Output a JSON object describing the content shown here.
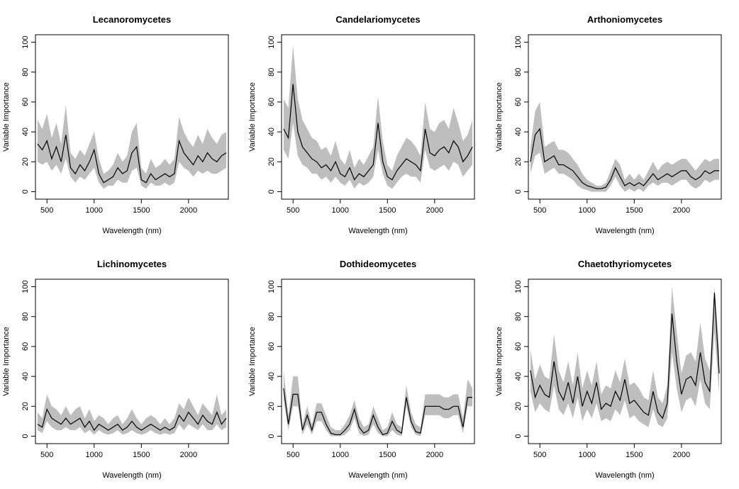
{
  "chart_data": [
    {
      "type": "line",
      "title": "Lecanoromycetes",
      "xlabel": "Wavelength (nm)",
      "ylabel": "Variable Importance",
      "xlim": [
        400,
        2400
      ],
      "ylim": [
        0,
        100
      ],
      "xticks": [
        500,
        1000,
        1500,
        2000
      ],
      "yticks": [
        0,
        20,
        40,
        60,
        80,
        100
      ],
      "grid": false,
      "x": [
        400,
        450,
        500,
        550,
        600,
        650,
        700,
        750,
        800,
        850,
        900,
        950,
        1000,
        1050,
        1100,
        1150,
        1200,
        1250,
        1300,
        1350,
        1400,
        1450,
        1500,
        1550,
        1600,
        1650,
        1700,
        1750,
        1800,
        1850,
        1900,
        1950,
        2000,
        2050,
        2100,
        2150,
        2200,
        2250,
        2300,
        2350,
        2400
      ],
      "series": [
        {
          "values": [
            32,
            28,
            34,
            22,
            30,
            20,
            38,
            16,
            12,
            18,
            14,
            20,
            28,
            12,
            6,
            8,
            10,
            16,
            12,
            14,
            26,
            30,
            8,
            6,
            12,
            8,
            10,
            12,
            10,
            12,
            34,
            26,
            22,
            18,
            24,
            20,
            26,
            22,
            20,
            24,
            26
          ],
          "lower": [
            20,
            18,
            20,
            14,
            18,
            12,
            22,
            10,
            6,
            10,
            8,
            12,
            16,
            6,
            2,
            4,
            4,
            8,
            6,
            6,
            14,
            16,
            4,
            2,
            6,
            4,
            4,
            6,
            4,
            6,
            20,
            16,
            14,
            10,
            14,
            12,
            14,
            12,
            12,
            14,
            16
          ],
          "upper": [
            48,
            42,
            52,
            36,
            46,
            32,
            58,
            26,
            22,
            28,
            24,
            32,
            40,
            22,
            12,
            14,
            18,
            26,
            20,
            24,
            40,
            46,
            16,
            12,
            22,
            16,
            18,
            22,
            18,
            22,
            50,
            40,
            34,
            30,
            38,
            32,
            42,
            36,
            32,
            38,
            40
          ]
        }
      ]
    },
    {
      "type": "line",
      "title": "Candelariomycetes",
      "xlabel": "Wavelength (nm)",
      "ylabel": "Variable Importance",
      "xlim": [
        400,
        2400
      ],
      "ylim": [
        0,
        100
      ],
      "xticks": [
        500,
        1000,
        1500,
        2000
      ],
      "yticks": [
        0,
        20,
        40,
        60,
        80,
        100
      ],
      "grid": false,
      "x": [
        400,
        450,
        500,
        550,
        600,
        650,
        700,
        750,
        800,
        850,
        900,
        950,
        1000,
        1050,
        1100,
        1150,
        1200,
        1250,
        1300,
        1350,
        1400,
        1450,
        1500,
        1550,
        1600,
        1650,
        1700,
        1750,
        1800,
        1850,
        1900,
        1950,
        2000,
        2050,
        2100,
        2150,
        2200,
        2250,
        2300,
        2350,
        2400
      ],
      "series": [
        {
          "values": [
            42,
            36,
            72,
            40,
            30,
            26,
            22,
            20,
            16,
            18,
            14,
            20,
            12,
            10,
            16,
            8,
            12,
            10,
            14,
            18,
            46,
            20,
            10,
            8,
            14,
            18,
            22,
            20,
            18,
            14,
            42,
            26,
            24,
            28,
            30,
            26,
            34,
            30,
            20,
            24,
            30
          ],
          "lower": [
            28,
            22,
            46,
            24,
            18,
            16,
            12,
            12,
            8,
            10,
            6,
            10,
            6,
            4,
            8,
            2,
            6,
            4,
            6,
            10,
            28,
            12,
            4,
            2,
            6,
            10,
            12,
            10,
            10,
            6,
            28,
            16,
            14,
            16,
            18,
            14,
            20,
            18,
            10,
            14,
            18
          ],
          "upper": [
            62,
            56,
            98,
            62,
            48,
            42,
            36,
            34,
            28,
            30,
            24,
            34,
            22,
            18,
            28,
            16,
            22,
            18,
            24,
            30,
            64,
            34,
            18,
            14,
            24,
            30,
            36,
            34,
            30,
            24,
            60,
            42,
            40,
            46,
            48,
            42,
            56,
            46,
            34,
            38,
            48
          ]
        }
      ]
    },
    {
      "type": "line",
      "title": "Arthoniomycetes",
      "xlabel": "Wavelength (nm)",
      "ylabel": "Variable Importance",
      "xlim": [
        400,
        2400
      ],
      "ylim": [
        0,
        100
      ],
      "xticks": [
        500,
        1000,
        1500,
        2000
      ],
      "yticks": [
        0,
        20,
        40,
        60,
        80,
        100
      ],
      "grid": false,
      "x": [
        400,
        450,
        500,
        550,
        600,
        650,
        700,
        750,
        800,
        850,
        900,
        950,
        1000,
        1050,
        1100,
        1150,
        1200,
        1250,
        1300,
        1350,
        1400,
        1450,
        1500,
        1550,
        1600,
        1650,
        1700,
        1750,
        1800,
        1850,
        1900,
        1950,
        2000,
        2050,
        2100,
        2150,
        2200,
        2250,
        2300,
        2350,
        2400
      ],
      "series": [
        {
          "values": [
            20,
            38,
            42,
            20,
            22,
            24,
            18,
            18,
            16,
            14,
            10,
            6,
            4,
            3,
            2,
            2,
            3,
            8,
            16,
            10,
            4,
            6,
            4,
            6,
            4,
            8,
            12,
            8,
            10,
            12,
            10,
            12,
            14,
            14,
            10,
            8,
            10,
            14,
            12,
            14,
            14
          ],
          "lower": [
            12,
            24,
            26,
            12,
            14,
            16,
            12,
            12,
            10,
            8,
            4,
            2,
            1,
            0,
            0,
            0,
            0,
            4,
            10,
            4,
            0,
            2,
            0,
            2,
            0,
            4,
            6,
            4,
            6,
            6,
            4,
            6,
            8,
            8,
            4,
            2,
            4,
            8,
            6,
            8,
            8
          ],
          "upper": [
            30,
            54,
            60,
            30,
            32,
            34,
            28,
            28,
            26,
            22,
            18,
            12,
            8,
            6,
            4,
            4,
            6,
            14,
            22,
            18,
            8,
            12,
            8,
            12,
            8,
            14,
            20,
            14,
            18,
            20,
            18,
            20,
            22,
            22,
            18,
            14,
            18,
            22,
            20,
            22,
            22
          ]
        }
      ]
    },
    {
      "type": "line",
      "title": "Lichinomycetes",
      "xlabel": "Wavelength (nm)",
      "ylabel": "Variable Importance",
      "xlim": [
        400,
        2400
      ],
      "ylim": [
        0,
        100
      ],
      "xticks": [
        500,
        1000,
        1500,
        2000
      ],
      "yticks": [
        0,
        20,
        40,
        60,
        80,
        100
      ],
      "grid": false,
      "x": [
        400,
        450,
        500,
        550,
        600,
        650,
        700,
        750,
        800,
        850,
        900,
        950,
        1000,
        1050,
        1100,
        1150,
        1200,
        1250,
        1300,
        1350,
        1400,
        1450,
        1500,
        1550,
        1600,
        1650,
        1700,
        1750,
        1800,
        1850,
        1900,
        1950,
        2000,
        2050,
        2100,
        2150,
        2200,
        2250,
        2300,
        2350,
        2400
      ],
      "series": [
        {
          "values": [
            8,
            6,
            18,
            12,
            10,
            8,
            12,
            8,
            10,
            12,
            6,
            10,
            4,
            8,
            6,
            4,
            6,
            8,
            4,
            6,
            10,
            6,
            4,
            6,
            8,
            6,
            4,
            6,
            4,
            6,
            14,
            10,
            16,
            12,
            8,
            14,
            10,
            8,
            16,
            8,
            12
          ],
          "lower": [
            4,
            2,
            10,
            6,
            4,
            4,
            6,
            4,
            4,
            6,
            2,
            4,
            1,
            4,
            2,
            1,
            2,
            4,
            1,
            2,
            4,
            2,
            1,
            2,
            4,
            2,
            1,
            2,
            1,
            2,
            8,
            4,
            8,
            6,
            4,
            8,
            4,
            4,
            8,
            4,
            6
          ],
          "upper": [
            16,
            12,
            28,
            20,
            18,
            14,
            20,
            14,
            18,
            20,
            12,
            18,
            10,
            14,
            12,
            8,
            12,
            14,
            8,
            12,
            18,
            12,
            8,
            12,
            14,
            12,
            8,
            12,
            8,
            12,
            22,
            18,
            26,
            20,
            14,
            22,
            18,
            14,
            28,
            14,
            18
          ]
        }
      ]
    },
    {
      "type": "line",
      "title": "Dothideomycetes",
      "xlabel": "Wavelength (nm)",
      "ylabel": "Variable Importance",
      "xlim": [
        400,
        2400
      ],
      "ylim": [
        0,
        100
      ],
      "xticks": [
        500,
        1000,
        1500,
        2000
      ],
      "yticks": [
        0,
        20,
        40,
        60,
        80,
        100
      ],
      "grid": false,
      "x": [
        400,
        450,
        500,
        550,
        600,
        650,
        700,
        750,
        800,
        850,
        900,
        950,
        1000,
        1050,
        1100,
        1150,
        1200,
        1250,
        1300,
        1350,
        1400,
        1450,
        1500,
        1550,
        1600,
        1650,
        1700,
        1750,
        1800,
        1850,
        1900,
        1950,
        2000,
        2050,
        2100,
        2150,
        2200,
        2250,
        2300,
        2350,
        2400
      ],
      "series": [
        {
          "values": [
            32,
            8,
            28,
            28,
            4,
            14,
            4,
            16,
            16,
            8,
            2,
            1,
            1,
            4,
            8,
            18,
            6,
            2,
            4,
            14,
            6,
            1,
            2,
            10,
            4,
            2,
            26,
            10,
            3,
            2,
            20,
            20,
            20,
            20,
            18,
            18,
            20,
            20,
            6,
            26,
            26
          ],
          "lower": [
            24,
            4,
            20,
            20,
            1,
            8,
            1,
            10,
            10,
            4,
            0,
            0,
            0,
            1,
            4,
            12,
            2,
            0,
            1,
            8,
            2,
            0,
            0,
            4,
            1,
            0,
            20,
            6,
            1,
            0,
            14,
            14,
            14,
            14,
            12,
            12,
            14,
            14,
            2,
            20,
            20
          ],
          "upper": [
            44,
            14,
            40,
            40,
            8,
            20,
            8,
            22,
            22,
            14,
            6,
            4,
            4,
            8,
            14,
            24,
            12,
            6,
            8,
            20,
            12,
            4,
            6,
            16,
            8,
            6,
            34,
            16,
            8,
            6,
            28,
            28,
            28,
            28,
            26,
            26,
            28,
            28,
            12,
            38,
            32
          ]
        }
      ]
    },
    {
      "type": "line",
      "title": "Chaetothyriomycetes",
      "xlabel": "Wavelength (nm)",
      "ylabel": "Variable Importance",
      "xlim": [
        400,
        2400
      ],
      "ylim": [
        0,
        100
      ],
      "xticks": [
        500,
        1000,
        1500,
        2000
      ],
      "yticks": [
        0,
        20,
        40,
        60,
        80,
        100
      ],
      "grid": false,
      "x": [
        400,
        450,
        500,
        550,
        600,
        650,
        700,
        750,
        800,
        850,
        900,
        950,
        1000,
        1050,
        1100,
        1150,
        1200,
        1250,
        1300,
        1350,
        1400,
        1450,
        1500,
        1550,
        1600,
        1650,
        1700,
        1750,
        1800,
        1850,
        1900,
        1950,
        2000,
        2050,
        2100,
        2150,
        2200,
        2250,
        2300,
        2350,
        2400
      ],
      "series": [
        {
          "values": [
            44,
            26,
            34,
            28,
            26,
            50,
            30,
            24,
            36,
            22,
            40,
            20,
            30,
            22,
            36,
            18,
            22,
            20,
            30,
            24,
            38,
            22,
            24,
            20,
            16,
            14,
            30,
            16,
            12,
            22,
            82,
            50,
            28,
            38,
            40,
            34,
            56,
            36,
            30,
            96,
            42
          ],
          "lower": [
            30,
            16,
            22,
            18,
            16,
            34,
            18,
            14,
            22,
            12,
            26,
            10,
            18,
            12,
            22,
            10,
            12,
            10,
            18,
            14,
            24,
            12,
            14,
            10,
            8,
            6,
            18,
            8,
            6,
            12,
            56,
            32,
            16,
            24,
            26,
            20,
            38,
            22,
            18,
            70,
            28
          ],
          "upper": [
            58,
            38,
            48,
            40,
            38,
            68,
            44,
            36,
            50,
            34,
            56,
            32,
            44,
            34,
            50,
            28,
            34,
            32,
            44,
            36,
            52,
            34,
            36,
            32,
            26,
            24,
            44,
            26,
            22,
            34,
            100,
            70,
            42,
            54,
            56,
            50,
            76,
            52,
            44,
            100,
            58
          ]
        }
      ]
    }
  ]
}
